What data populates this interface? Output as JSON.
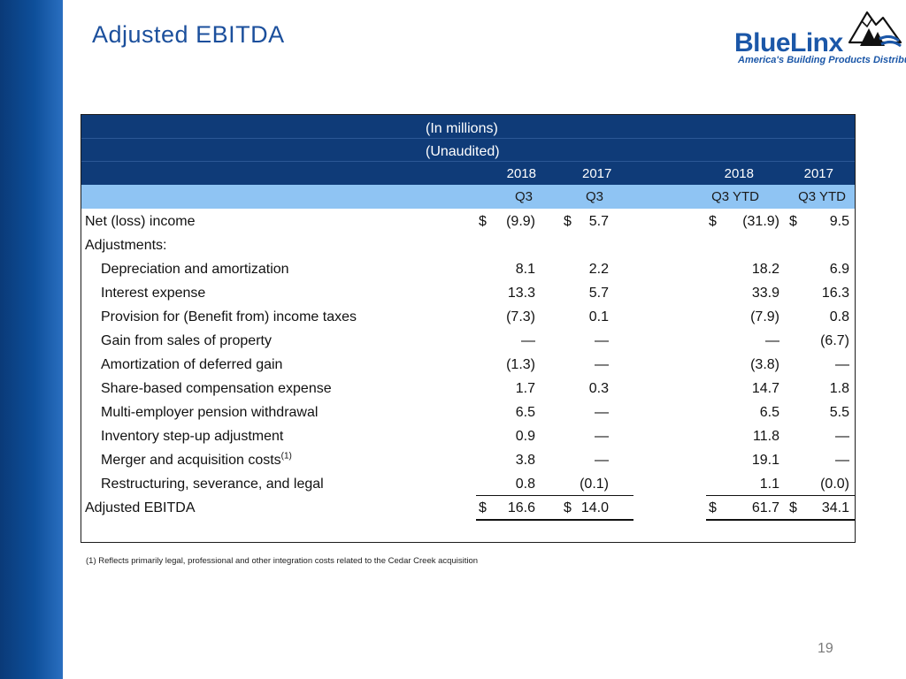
{
  "slide": {
    "title": "Adjusted EBITDA",
    "page_number": "19",
    "footnote": "(1) Reflects primarily legal, professional and other integration costs related to the Cedar Creek acquisition"
  },
  "logo": {
    "wordmark": "BlueLinx",
    "tagline": "America's Building Products Distributor"
  },
  "table": {
    "header_line1": "(In millions)",
    "header_line2": "(Unaudited)",
    "years": [
      "2018",
      "2017",
      "2018",
      "2017"
    ],
    "periods": [
      "Q3",
      "Q3",
      "Q3 YTD",
      "Q3 YTD"
    ],
    "currency": "$",
    "rows": [
      {
        "label": "Net (loss) income",
        "values": [
          "(9.9)",
          "5.7",
          "(31.9)",
          "9.5"
        ],
        "indent": false,
        "dollar": true
      },
      {
        "label": "Adjustments:",
        "values": [
          "",
          "",
          "",
          ""
        ],
        "indent": false,
        "dollar": false
      },
      {
        "label": "Depreciation and amortization",
        "values": [
          "8.1",
          "2.2",
          "18.2",
          "6.9"
        ],
        "indent": true,
        "dollar": false
      },
      {
        "label": "Interest expense",
        "values": [
          "13.3",
          "5.7",
          "33.9",
          "16.3"
        ],
        "indent": true,
        "dollar": false
      },
      {
        "label": "Provision for (Benefit from) income taxes",
        "values": [
          "(7.3)",
          "0.1",
          "(7.9)",
          "0.8"
        ],
        "indent": true,
        "dollar": false
      },
      {
        "label": "Gain from sales of property",
        "values": [
          "—",
          "—",
          "—",
          "(6.7)"
        ],
        "indent": true,
        "dollar": false
      },
      {
        "label": "Amortization of deferred gain",
        "values": [
          "(1.3)",
          "—",
          "(3.8)",
          "—"
        ],
        "indent": true,
        "dollar": false
      },
      {
        "label": "Share-based compensation expense",
        "values": [
          "1.7",
          "0.3",
          "14.7",
          "1.8"
        ],
        "indent": true,
        "dollar": false
      },
      {
        "label": "Multi-employer pension withdrawal",
        "values": [
          "6.5",
          "—",
          "6.5",
          "5.5"
        ],
        "indent": true,
        "dollar": false
      },
      {
        "label": "Inventory step-up adjustment",
        "values": [
          "0.9",
          "—",
          "11.8",
          "—"
        ],
        "indent": true,
        "dollar": false
      },
      {
        "label": "Merger and acquisition costs",
        "sup": "(1)",
        "values": [
          "3.8",
          "—",
          "19.1",
          "—"
        ],
        "indent": true,
        "dollar": false
      },
      {
        "label": "Restructuring, severance, and legal",
        "values": [
          "0.8",
          "(0.1)",
          "1.1",
          "(0.0)"
        ],
        "indent": true,
        "dollar": false
      },
      {
        "label": "Adjusted EBITDA",
        "values": [
          "16.6",
          "14.0",
          "61.7",
          "34.1"
        ],
        "indent": false,
        "dollar": true
      }
    ]
  }
}
